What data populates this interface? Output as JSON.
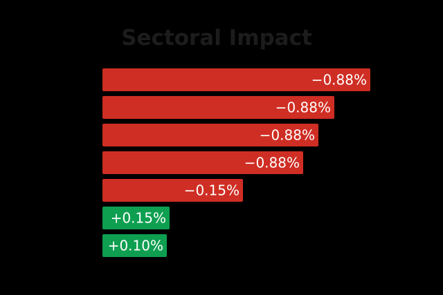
{
  "chart_data": {
    "type": "bar",
    "orientation": "horizontal",
    "title": "Sectoral Impact",
    "xlabel": "",
    "ylabel": "",
    "grid": false,
    "legend": "none",
    "baseline_value": -1.0,
    "xlim": [
      -1.0,
      0.3
    ],
    "bars": [
      {
        "value": -0.88,
        "label": "−0.88%"
      },
      {
        "value": -0.88,
        "label": "−0.88%"
      },
      {
        "value": -0.88,
        "label": "−0.88%"
      },
      {
        "value": -0.88,
        "label": "−0.88%"
      },
      {
        "value": -0.15,
        "label": "−0.15%"
      },
      {
        "value": 0.15,
        "label": "+0.15%"
      },
      {
        "value": 0.1,
        "label": "+0.10%"
      }
    ],
    "colors": {
      "background": "#000000",
      "title": "#1c1c1c",
      "negative": "#cf2e24",
      "positive": "#0e9f50",
      "label": "#ffffff"
    }
  }
}
